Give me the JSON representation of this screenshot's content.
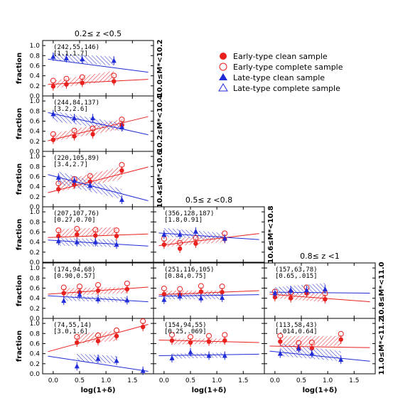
{
  "legend": [
    {
      "label": "Early-type clean sample",
      "marker": "circle",
      "filled": true,
      "color": "#e8201e"
    },
    {
      "label": "Early-type complete sample",
      "marker": "circle",
      "filled": false,
      "color": "#e8201e"
    },
    {
      "label": "Late-type clean sample",
      "marker": "triangle",
      "filled": true,
      "color": "#1f2bd6"
    },
    {
      "label": "Late-type complete sample",
      "marker": "triangle",
      "filled": false,
      "color": "#1f2bd6"
    }
  ],
  "colors": {
    "early": "#e8201e",
    "late": "#1f2bd6",
    "axis": "#000000"
  },
  "axes": {
    "xlabel": "log(1+δ)",
    "ylabel": "fraction",
    "xlim": [
      -0.2,
      1.9
    ],
    "ylim": [
      0.0,
      1.1
    ],
    "xticks": [
      "0.0",
      "0.5",
      "1.0",
      "1.5"
    ],
    "yticks": [
      "0.0",
      "0.2",
      "0.4",
      "0.6",
      "0.8",
      "1.0"
    ]
  },
  "column_titles": [
    "0.2≤ z <0.5",
    "0.5≤ z <0.8",
    "0.8≤ z <1"
  ],
  "mass_labels": [
    "10.0≤M*<10.2",
    "10.2≤M*<10.4",
    "10.4≤M*<10.6",
    "10.6≤M*<10.8",
    "10.8≤M*<11.0",
    "11.0≤M*<11.2"
  ],
  "chart_data": [
    {
      "type": "scatter",
      "col": 0,
      "row": 0,
      "n": "(242,55,146)",
      "slopes": "[1.1,1.7]",
      "early": [
        [
          0.0,
          0.19
        ],
        [
          0.25,
          0.23
        ],
        [
          0.55,
          0.26
        ],
        [
          1.15,
          0.29
        ]
      ],
      "late": [
        [
          0.0,
          0.78
        ],
        [
          0.25,
          0.75
        ],
        [
          0.55,
          0.73
        ],
        [
          1.15,
          0.7
        ]
      ],
      "early_fit": [
        [
          -0.1,
          0.23
        ],
        [
          1.8,
          0.33
        ]
      ],
      "late_fit": [
        [
          -0.1,
          0.73
        ],
        [
          1.8,
          0.47
        ]
      ],
      "early_band": [
        [
          0.0,
          0.3,
          0.15
        ],
        [
          1.15,
          0.5,
          0.3
        ]
      ],
      "late_band": [
        [
          0.0,
          0.85,
          0.7
        ],
        [
          1.15,
          0.78,
          0.6
        ]
      ]
    },
    {
      "type": "scatter",
      "col": 0,
      "row": 1,
      "n": "(244,84,137)",
      "slopes": "[3.2,2.6]",
      "early": [
        [
          0.0,
          0.23
        ],
        [
          0.4,
          0.3
        ],
        [
          0.75,
          0.34
        ],
        [
          1.3,
          0.52
        ]
      ],
      "late": [
        [
          0.0,
          0.74
        ],
        [
          0.4,
          0.66
        ],
        [
          0.75,
          0.66
        ],
        [
          1.3,
          0.48
        ]
      ],
      "early_fit": [
        [
          -0.1,
          0.21
        ],
        [
          1.8,
          0.69
        ]
      ],
      "late_fit": [
        [
          -0.1,
          0.77
        ],
        [
          1.8,
          0.33
        ]
      ],
      "early_band": [
        [
          0.0,
          0.35,
          0.2
        ],
        [
          1.35,
          0.65,
          0.45
        ]
      ],
      "late_band": [
        [
          0.0,
          0.8,
          0.6
        ],
        [
          1.35,
          0.55,
          0.4
        ]
      ]
    },
    {
      "type": "scatter",
      "col": 0,
      "row": 2,
      "n": "(220,105,89)",
      "slopes": "[3.4,2.7]",
      "early": [
        [
          0.1,
          0.35
        ],
        [
          0.4,
          0.44
        ],
        [
          0.7,
          0.5
        ],
        [
          1.3,
          0.72
        ]
      ],
      "late": [
        [
          0.1,
          0.58
        ],
        [
          0.4,
          0.52
        ],
        [
          0.7,
          0.42
        ],
        [
          1.3,
          0.14
        ]
      ],
      "early_fit": [
        [
          -0.1,
          0.28
        ],
        [
          1.8,
          0.79
        ]
      ],
      "late_fit": [
        [
          -0.1,
          0.64
        ],
        [
          1.8,
          0.12
        ]
      ],
      "early_band": [
        [
          0.1,
          0.5,
          0.3
        ],
        [
          1.3,
          0.8,
          0.55
        ]
      ],
      "late_band": [
        [
          0.1,
          0.7,
          0.45
        ],
        [
          1.3,
          0.35,
          0.15
        ]
      ]
    },
    {
      "type": "scatter",
      "col": 0,
      "row": 3,
      "n": "(207,107,76)",
      "slopes": "[0.27,0.70]",
      "early": [
        [
          0.1,
          0.52
        ],
        [
          0.45,
          0.55
        ],
        [
          0.8,
          0.53
        ],
        [
          1.2,
          0.52
        ]
      ],
      "late": [
        [
          0.1,
          0.42
        ],
        [
          0.45,
          0.4
        ],
        [
          0.8,
          0.4
        ],
        [
          1.2,
          0.35
        ]
      ],
      "early_fit": [
        [
          -0.1,
          0.49
        ],
        [
          1.8,
          0.56
        ]
      ],
      "late_fit": [
        [
          -0.1,
          0.44
        ],
        [
          1.8,
          0.32
        ]
      ],
      "early_band": [
        [
          0.1,
          0.65,
          0.5
        ],
        [
          1.2,
          0.7,
          0.55
        ]
      ],
      "late_band": [
        [
          0.1,
          0.48,
          0.33
        ],
        [
          1.2,
          0.45,
          0.3
        ]
      ]
    },
    {
      "type": "scatter",
      "col": 0,
      "row": 4,
      "n": "(174,94,68)",
      "slopes": "[0.90,0.57]",
      "early": [
        [
          0.2,
          0.5
        ],
        [
          0.5,
          0.52
        ],
        [
          0.85,
          0.55
        ],
        [
          1.4,
          0.58
        ]
      ],
      "late": [
        [
          0.2,
          0.35
        ],
        [
          0.5,
          0.47
        ],
        [
          0.85,
          0.38
        ],
        [
          1.4,
          0.36
        ]
      ],
      "early_fit": [
        [
          -0.1,
          0.48
        ],
        [
          1.8,
          0.62
        ]
      ],
      "late_fit": [
        [
          -0.1,
          0.45
        ],
        [
          1.8,
          0.33
        ]
      ],
      "early_band": [
        [
          0.2,
          0.6,
          0.45
        ],
        [
          1.4,
          0.62,
          0.5
        ]
      ],
      "late_band": [
        [
          0.2,
          0.45,
          0.35
        ],
        [
          1.4,
          0.42,
          0.32
        ]
      ]
    },
    {
      "type": "scatter",
      "col": 0,
      "row": 5,
      "n": "(74,55,14)",
      "slopes": "[3.0,1.6]",
      "early": [
        [
          0.45,
          0.62
        ],
        [
          0.85,
          0.65
        ],
        [
          1.2,
          0.75
        ],
        [
          1.7,
          0.93
        ]
      ],
      "late": [
        [
          0.45,
          0.15
        ],
        [
          0.85,
          0.3
        ],
        [
          1.2,
          0.26
        ],
        [
          1.7,
          0.06
        ]
      ],
      "early_fit": [
        [
          -0.1,
          0.44
        ],
        [
          1.8,
          0.98
        ]
      ],
      "late_fit": [
        [
          -0.1,
          0.35
        ],
        [
          1.8,
          0.05
        ]
      ],
      "early_band": [
        [
          0.45,
          0.8,
          0.6
        ],
        [
          1.2,
          0.85,
          0.65
        ]
      ],
      "late_band": [
        [
          0.45,
          0.4,
          0.25
        ],
        [
          1.2,
          0.35,
          0.2
        ]
      ]
    },
    {
      "type": "scatter",
      "col": 1,
      "row": 3,
      "n": "(356,128,187)",
      "slopes": "[1.8,0.91]",
      "early": [
        [
          0.0,
          0.35
        ],
        [
          0.3,
          0.27
        ],
        [
          0.6,
          0.37
        ],
        [
          1.15,
          0.46
        ]
      ],
      "late": [
        [
          0.0,
          0.55
        ],
        [
          0.3,
          0.55
        ],
        [
          0.6,
          0.61
        ],
        [
          1.15,
          0.47
        ]
      ],
      "early_fit": [
        [
          -0.1,
          0.33
        ],
        [
          1.8,
          0.57
        ]
      ],
      "late_fit": [
        [
          -0.1,
          0.58
        ],
        [
          1.8,
          0.45
        ]
      ],
      "early_band": [
        [
          0.0,
          0.45,
          0.3
        ],
        [
          1.15,
          0.55,
          0.4
        ]
      ],
      "late_band": [
        [
          0.0,
          0.68,
          0.5
        ],
        [
          1.15,
          0.58,
          0.45
        ]
      ]
    },
    {
      "type": "scatter",
      "col": 1,
      "row": 4,
      "n": "(251,116,105)",
      "slopes": "[0.84,0.75]",
      "early": [
        [
          0.0,
          0.48
        ],
        [
          0.3,
          0.47
        ],
        [
          0.7,
          0.53
        ],
        [
          1.1,
          0.52
        ]
      ],
      "late": [
        [
          0.0,
          0.37
        ],
        [
          0.3,
          0.44
        ],
        [
          0.7,
          0.4
        ],
        [
          1.1,
          0.41
        ]
      ],
      "early_fit": [
        [
          -0.1,
          0.47
        ],
        [
          1.8,
          0.55
        ]
      ],
      "late_fit": [
        [
          -0.1,
          0.44
        ],
        [
          1.8,
          0.47
        ]
      ],
      "early_band": [
        [
          0.0,
          0.55,
          0.45
        ],
        [
          1.1,
          0.55,
          0.45
        ]
      ],
      "late_band": [
        [
          0.0,
          0.5,
          0.38
        ],
        [
          1.1,
          0.5,
          0.38
        ]
      ]
    },
    {
      "type": "scatter",
      "col": 1,
      "row": 5,
      "n": "(154,94,55)",
      "slopes": "[0.25,.069]",
      "early": [
        [
          0.15,
          0.66
        ],
        [
          0.5,
          0.62
        ],
        [
          0.85,
          0.64
        ],
        [
          1.15,
          0.66
        ]
      ],
      "late": [
        [
          0.15,
          0.31
        ],
        [
          0.5,
          0.43
        ],
        [
          0.85,
          0.36
        ],
        [
          1.15,
          0.36
        ]
      ],
      "early_fit": [
        [
          -0.1,
          0.67
        ],
        [
          1.8,
          0.62
        ]
      ],
      "late_fit": [
        [
          -0.1,
          0.36
        ],
        [
          1.8,
          0.39
        ]
      ],
      "early_band": [
        [
          0.15,
          0.7,
          0.58
        ],
        [
          1.15,
          0.7,
          0.6
        ]
      ],
      "late_band": [
        [
          0.15,
          0.4,
          0.3
        ],
        [
          1.15,
          0.42,
          0.32
        ]
      ]
    },
    {
      "type": "scatter",
      "col": 2,
      "row": 4,
      "n": "(157,63,78)",
      "slopes": "[0.65,.015]",
      "early": [
        [
          0.0,
          0.42
        ],
        [
          0.3,
          0.4
        ],
        [
          0.6,
          0.5
        ],
        [
          0.95,
          0.38
        ]
      ],
      "late": [
        [
          0.0,
          0.5
        ],
        [
          0.3,
          0.56
        ],
        [
          0.6,
          0.56
        ],
        [
          0.95,
          0.58
        ]
      ],
      "early_fit": [
        [
          -0.1,
          0.48
        ],
        [
          1.8,
          0.33
        ]
      ],
      "late_fit": [
        [
          -0.1,
          0.52
        ],
        [
          1.8,
          0.5
        ]
      ],
      "early_band": [
        [
          0.0,
          0.5,
          0.4
        ],
        [
          0.95,
          0.5,
          0.32
        ]
      ],
      "late_band": [
        [
          0.0,
          0.62,
          0.45
        ],
        [
          0.95,
          0.7,
          0.5
        ]
      ]
    },
    {
      "type": "scatter",
      "col": 2,
      "row": 5,
      "n": "(113,58,43)",
      "slopes": "[.014,0.64]",
      "early": [
        [
          0.1,
          0.64
        ],
        [
          0.45,
          0.5
        ],
        [
          0.7,
          0.51
        ],
        [
          1.25,
          0.68
        ]
      ],
      "late": [
        [
          0.1,
          0.4
        ],
        [
          0.45,
          0.5
        ],
        [
          0.7,
          0.4
        ],
        [
          1.25,
          0.28
        ]
      ],
      "early_fit": [
        [
          -0.1,
          0.55
        ],
        [
          1.8,
          0.52
        ]
      ],
      "late_fit": [
        [
          -0.1,
          0.45
        ],
        [
          1.8,
          0.25
        ]
      ],
      "early_band": [
        [
          0.1,
          0.75,
          0.55
        ],
        [
          1.25,
          0.75,
          0.55
        ]
      ],
      "late_band": [
        [
          0.1,
          0.6,
          0.35
        ],
        [
          1.25,
          0.45,
          0.25
        ]
      ]
    }
  ]
}
